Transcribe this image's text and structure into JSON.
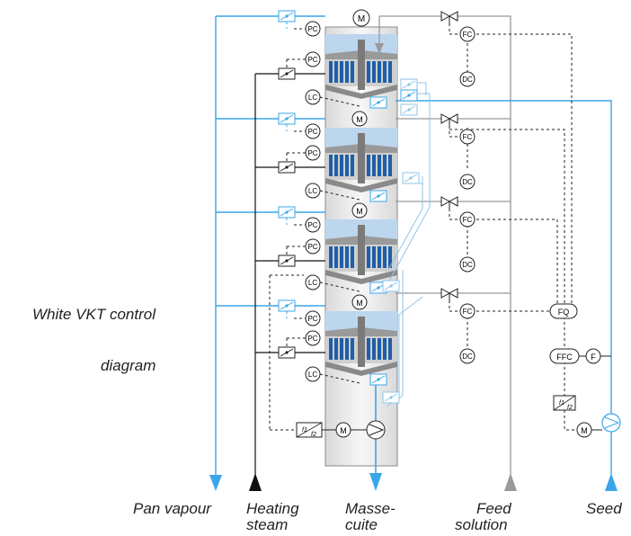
{
  "side_text": {
    "line1": "White VKT control",
    "line2": "diagram"
  },
  "bottom_labels": {
    "pan_vapour": "Pan vapour",
    "heating_steam_1": "Heating",
    "heating_steam_2": "steam",
    "massecuite_1": "Masse-",
    "massecuite_2": "cuite",
    "feed_solution_1": "Feed",
    "feed_solution_2": "solution",
    "seed": "Seed"
  },
  "instruments": {
    "pc": "PC",
    "lc": "LC",
    "fc": "FC",
    "dc": "DC",
    "fq": "FQ",
    "ffc": "FFC",
    "f": "F",
    "m": "M",
    "ratio": "f1/f2"
  },
  "colors": {
    "vapour_line": "#3aa6e8",
    "steam_line": "#111111",
    "feed_line": "#999999",
    "massecuite_line": "#3aa6e8",
    "seed_line": "#3aa6e8",
    "vessel_light_blue": "#bcd6ee",
    "heater_tubes": "#1e5fa8",
    "divider_gray": "#7a7a7a",
    "vessel_body": "#f4f4f4"
  },
  "stages": 4
}
